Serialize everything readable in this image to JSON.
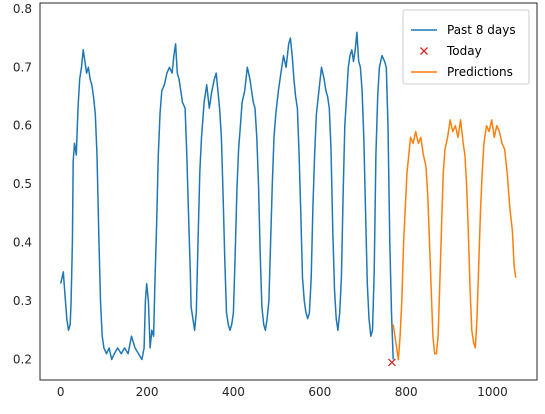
{
  "chart_data": {
    "type": "line",
    "title": "",
    "xlabel": "",
    "ylabel": "",
    "xlim": [
      -48,
      1103
    ],
    "ylim": [
      0.165,
      0.81
    ],
    "grid": false,
    "legend_position": "top-right",
    "x_ticks": [
      {
        "value": 0,
        "label": "0"
      },
      {
        "value": 200,
        "label": "200"
      },
      {
        "value": 400,
        "label": "400"
      },
      {
        "value": 600,
        "label": "600"
      },
      {
        "value": 800,
        "label": "800"
      },
      {
        "value": 1000,
        "label": "1000"
      }
    ],
    "y_ticks": [
      {
        "value": 0.2,
        "label": "0.2"
      },
      {
        "value": 0.3,
        "label": "0.3"
      },
      {
        "value": 0.4,
        "label": "0.4"
      },
      {
        "value": 0.5,
        "label": "0.5"
      },
      {
        "value": 0.6,
        "label": "0.6"
      },
      {
        "value": 0.7,
        "label": "0.7"
      },
      {
        "value": 0.8,
        "label": "0.8"
      }
    ],
    "series": [
      {
        "name": "Past 8 days",
        "kind": "line",
        "color": "#1f77b4",
        "points": [
          [
            0,
            0.33
          ],
          [
            6,
            0.35
          ],
          [
            10,
            0.31
          ],
          [
            14,
            0.27
          ],
          [
            18,
            0.25
          ],
          [
            22,
            0.26
          ],
          [
            24,
            0.3
          ],
          [
            27,
            0.4
          ],
          [
            29,
            0.54
          ],
          [
            32,
            0.57
          ],
          [
            36,
            0.55
          ],
          [
            40,
            0.63
          ],
          [
            44,
            0.68
          ],
          [
            48,
            0.7
          ],
          [
            52,
            0.73
          ],
          [
            56,
            0.71
          ],
          [
            60,
            0.69
          ],
          [
            64,
            0.7
          ],
          [
            68,
            0.68
          ],
          [
            72,
            0.67
          ],
          [
            76,
            0.65
          ],
          [
            80,
            0.62
          ],
          [
            84,
            0.55
          ],
          [
            88,
            0.42
          ],
          [
            92,
            0.3
          ],
          [
            96,
            0.24
          ],
          [
            100,
            0.22
          ],
          [
            106,
            0.21
          ],
          [
            112,
            0.22
          ],
          [
            118,
            0.2
          ],
          [
            124,
            0.21
          ],
          [
            132,
            0.22
          ],
          [
            140,
            0.21
          ],
          [
            148,
            0.22
          ],
          [
            156,
            0.21
          ],
          [
            164,
            0.24
          ],
          [
            172,
            0.22
          ],
          [
            180,
            0.21
          ],
          [
            188,
            0.2
          ],
          [
            193,
            0.22
          ],
          [
            196,
            0.3
          ],
          [
            199,
            0.33
          ],
          [
            203,
            0.3
          ],
          [
            207,
            0.22
          ],
          [
            211,
            0.25
          ],
          [
            215,
            0.24
          ],
          [
            218,
            0.33
          ],
          [
            222,
            0.43
          ],
          [
            226,
            0.55
          ],
          [
            230,
            0.62
          ],
          [
            234,
            0.66
          ],
          [
            240,
            0.67
          ],
          [
            246,
            0.69
          ],
          [
            252,
            0.7
          ],
          [
            258,
            0.69
          ],
          [
            262,
            0.72
          ],
          [
            266,
            0.74
          ],
          [
            270,
            0.69
          ],
          [
            274,
            0.68
          ],
          [
            278,
            0.66
          ],
          [
            282,
            0.64
          ],
          [
            288,
            0.63
          ],
          [
            292,
            0.55
          ],
          [
            296,
            0.45
          ],
          [
            300,
            0.35
          ],
          [
            302,
            0.29
          ],
          [
            306,
            0.27
          ],
          [
            310,
            0.25
          ],
          [
            314,
            0.28
          ],
          [
            318,
            0.4
          ],
          [
            322,
            0.52
          ],
          [
            326,
            0.58
          ],
          [
            332,
            0.64
          ],
          [
            338,
            0.67
          ],
          [
            344,
            0.63
          ],
          [
            350,
            0.66
          ],
          [
            356,
            0.68
          ],
          [
            360,
            0.69
          ],
          [
            364,
            0.66
          ],
          [
            368,
            0.63
          ],
          [
            372,
            0.58
          ],
          [
            376,
            0.48
          ],
          [
            380,
            0.37
          ],
          [
            384,
            0.28
          ],
          [
            388,
            0.26
          ],
          [
            392,
            0.25
          ],
          [
            396,
            0.26
          ],
          [
            400,
            0.28
          ],
          [
            404,
            0.38
          ],
          [
            408,
            0.49
          ],
          [
            412,
            0.56
          ],
          [
            416,
            0.6
          ],
          [
            420,
            0.64
          ],
          [
            426,
            0.66
          ],
          [
            432,
            0.7
          ],
          [
            438,
            0.68
          ],
          [
            442,
            0.66
          ],
          [
            446,
            0.64
          ],
          [
            450,
            0.63
          ],
          [
            454,
            0.58
          ],
          [
            458,
            0.5
          ],
          [
            462,
            0.38
          ],
          [
            466,
            0.29
          ],
          [
            470,
            0.26
          ],
          [
            474,
            0.25
          ],
          [
            478,
            0.27
          ],
          [
            482,
            0.3
          ],
          [
            486,
            0.4
          ],
          [
            490,
            0.5
          ],
          [
            494,
            0.58
          ],
          [
            498,
            0.62
          ],
          [
            504,
            0.66
          ],
          [
            510,
            0.69
          ],
          [
            516,
            0.72
          ],
          [
            522,
            0.7
          ],
          [
            528,
            0.74
          ],
          [
            532,
            0.75
          ],
          [
            536,
            0.72
          ],
          [
            540,
            0.68
          ],
          [
            544,
            0.65
          ],
          [
            548,
            0.63
          ],
          [
            552,
            0.55
          ],
          [
            556,
            0.45
          ],
          [
            560,
            0.34
          ],
          [
            564,
            0.3
          ],
          [
            568,
            0.28
          ],
          [
            572,
            0.27
          ],
          [
            576,
            0.28
          ],
          [
            580,
            0.34
          ],
          [
            584,
            0.46
          ],
          [
            588,
            0.55
          ],
          [
            592,
            0.62
          ],
          [
            598,
            0.66
          ],
          [
            604,
            0.7
          ],
          [
            610,
            0.68
          ],
          [
            614,
            0.66
          ],
          [
            618,
            0.65
          ],
          [
            622,
            0.63
          ],
          [
            626,
            0.56
          ],
          [
            630,
            0.42
          ],
          [
            634,
            0.32
          ],
          [
            638,
            0.27
          ],
          [
            642,
            0.25
          ],
          [
            646,
            0.28
          ],
          [
            650,
            0.34
          ],
          [
            654,
            0.48
          ],
          [
            658,
            0.6
          ],
          [
            662,
            0.65
          ],
          [
            666,
            0.7
          ],
          [
            670,
            0.72
          ],
          [
            674,
            0.73
          ],
          [
            678,
            0.71
          ],
          [
            682,
            0.73
          ],
          [
            686,
            0.76
          ],
          [
            690,
            0.71
          ],
          [
            694,
            0.7
          ],
          [
            698,
            0.66
          ],
          [
            702,
            0.58
          ],
          [
            706,
            0.45
          ],
          [
            710,
            0.33
          ],
          [
            714,
            0.27
          ],
          [
            718,
            0.24
          ],
          [
            722,
            0.25
          ],
          [
            726,
            0.35
          ],
          [
            730,
            0.55
          ],
          [
            734,
            0.65
          ],
          [
            738,
            0.7
          ],
          [
            744,
            0.72
          ],
          [
            750,
            0.71
          ],
          [
            754,
            0.7
          ],
          [
            758,
            0.6
          ],
          [
            762,
            0.4
          ],
          [
            766,
            0.28
          ],
          [
            770,
            0.2
          ]
        ]
      },
      {
        "name": "Today",
        "kind": "marker",
        "color": "#d62728",
        "points": [
          [
            767,
            0.195
          ]
        ]
      },
      {
        "name": "Predictions",
        "kind": "line",
        "color": "#ff7f0e",
        "points": [
          [
            770,
            0.26
          ],
          [
            774,
            0.24
          ],
          [
            778,
            0.22
          ],
          [
            782,
            0.2
          ],
          [
            786,
            0.24
          ],
          [
            790,
            0.3
          ],
          [
            794,
            0.4
          ],
          [
            798,
            0.46
          ],
          [
            802,
            0.52
          ],
          [
            806,
            0.55
          ],
          [
            810,
            0.58
          ],
          [
            816,
            0.57
          ],
          [
            822,
            0.59
          ],
          [
            828,
            0.57
          ],
          [
            834,
            0.58
          ],
          [
            840,
            0.55
          ],
          [
            846,
            0.53
          ],
          [
            850,
            0.48
          ],
          [
            854,
            0.4
          ],
          [
            858,
            0.32
          ],
          [
            862,
            0.24
          ],
          [
            866,
            0.21
          ],
          [
            870,
            0.21
          ],
          [
            874,
            0.24
          ],
          [
            878,
            0.33
          ],
          [
            882,
            0.43
          ],
          [
            886,
            0.52
          ],
          [
            890,
            0.56
          ],
          [
            896,
            0.58
          ],
          [
            902,
            0.61
          ],
          [
            908,
            0.59
          ],
          [
            914,
            0.6
          ],
          [
            920,
            0.58
          ],
          [
            926,
            0.61
          ],
          [
            932,
            0.57
          ],
          [
            936,
            0.55
          ],
          [
            940,
            0.5
          ],
          [
            944,
            0.42
          ],
          [
            948,
            0.32
          ],
          [
            952,
            0.25
          ],
          [
            956,
            0.23
          ],
          [
            960,
            0.22
          ],
          [
            964,
            0.27
          ],
          [
            968,
            0.36
          ],
          [
            972,
            0.45
          ],
          [
            976,
            0.52
          ],
          [
            980,
            0.57
          ],
          [
            986,
            0.6
          ],
          [
            992,
            0.59
          ],
          [
            998,
            0.61
          ],
          [
            1004,
            0.58
          ],
          [
            1010,
            0.6
          ],
          [
            1016,
            0.59
          ],
          [
            1022,
            0.57
          ],
          [
            1028,
            0.56
          ],
          [
            1034,
            0.52
          ],
          [
            1040,
            0.46
          ],
          [
            1046,
            0.42
          ],
          [
            1050,
            0.36
          ],
          [
            1054,
            0.34
          ]
        ]
      }
    ]
  }
}
